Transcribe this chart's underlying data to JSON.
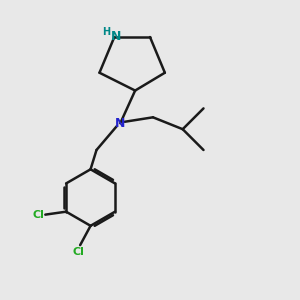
{
  "bg_color": "#e8e8e8",
  "bond_color": "#1a1a1a",
  "N_color": "#2222cc",
  "NH_color": "#008888",
  "Cl_color": "#22aa22",
  "bond_width": 1.8,
  "fig_bg": "#e8e8e8",
  "xlim": [
    0,
    10
  ],
  "ylim": [
    0,
    10
  ]
}
